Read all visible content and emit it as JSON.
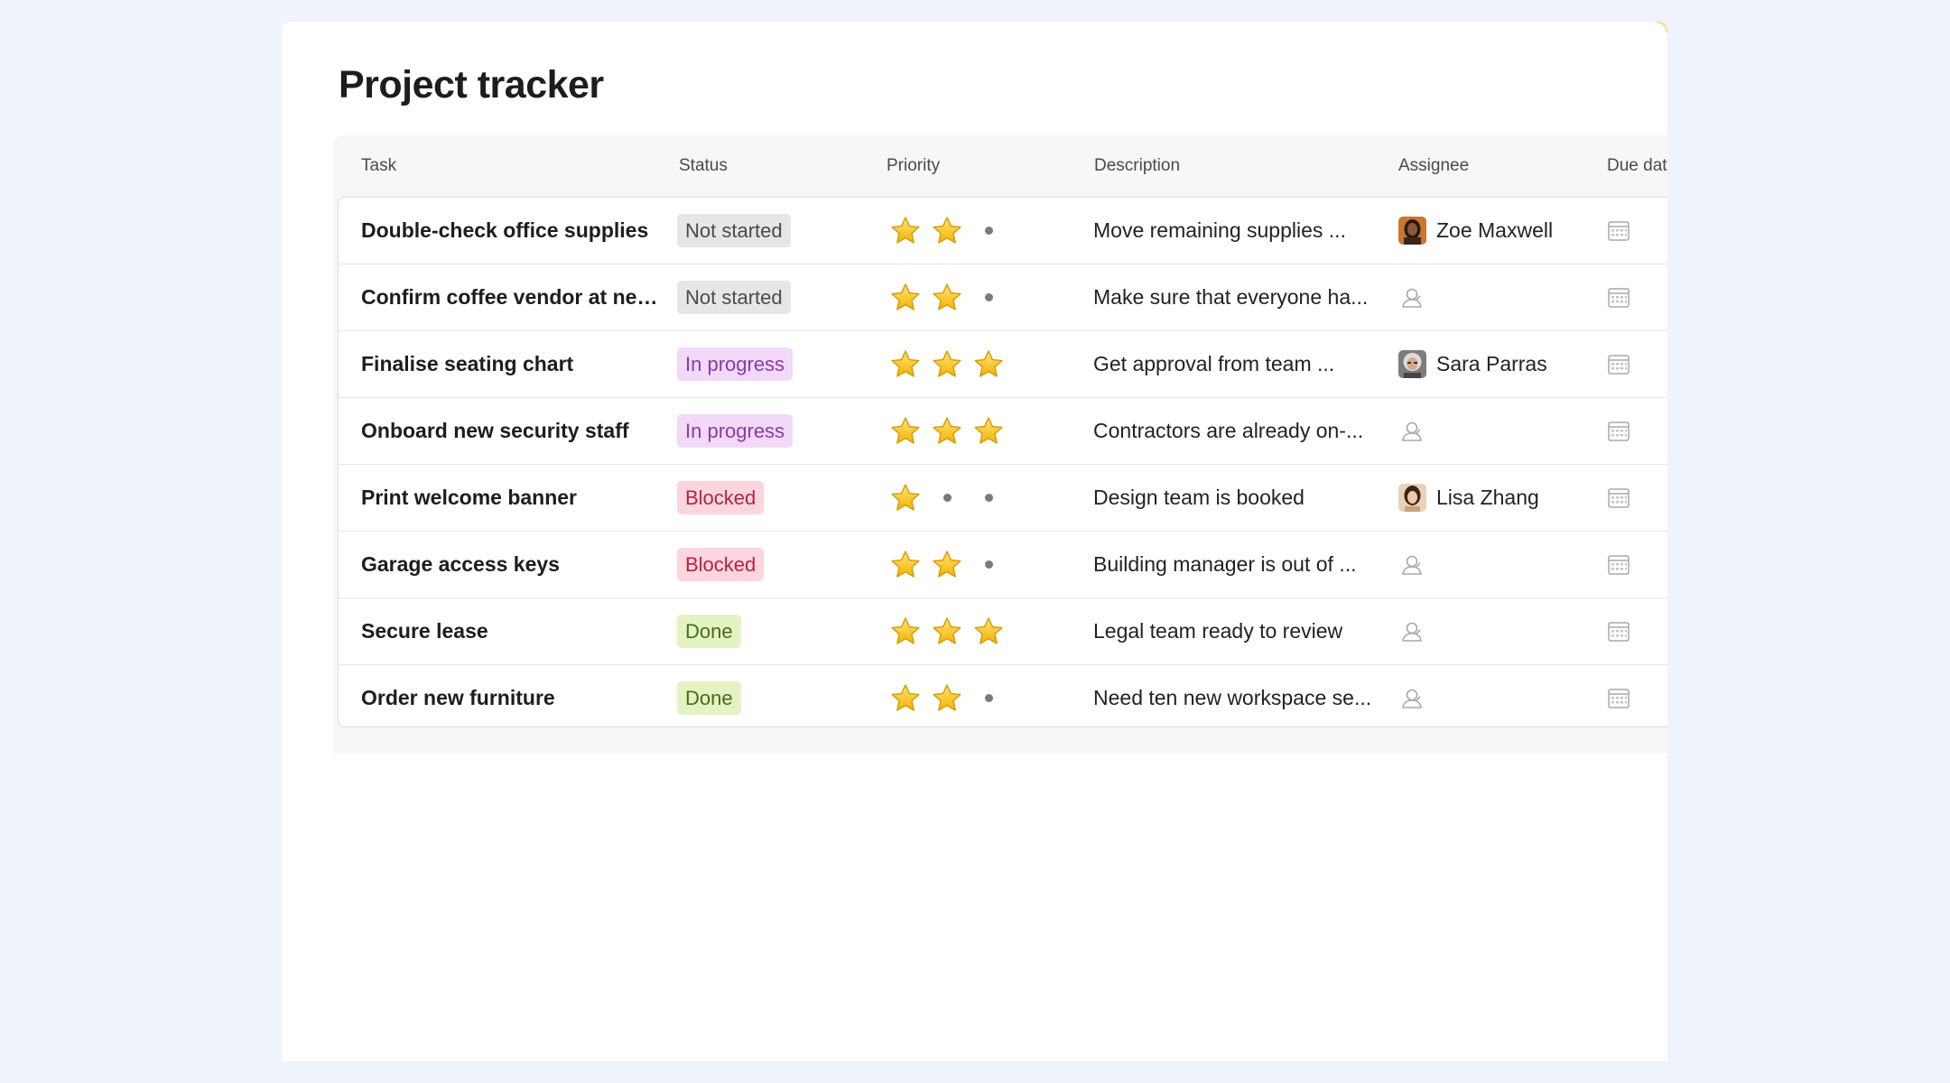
{
  "page": {
    "title": "Project tracker"
  },
  "columns": {
    "task": "Task",
    "status": "Status",
    "priority": "Priority",
    "description": "Description",
    "assignee": "Assignee",
    "due": "Due dat"
  },
  "status_styles": {
    "Not started": {
      "bg": "#e6e6e6",
      "fg": "#4a4a4a"
    },
    "In progress": {
      "bg": "#f1d9f7",
      "fg": "#8b3aa8"
    },
    "Blocked": {
      "bg": "#fbd6de",
      "fg": "#b8223f"
    },
    "Done": {
      "bg": "#e3f3c4",
      "fg": "#4b6b16"
    }
  },
  "rows": [
    {
      "task": "Double-check office supplies",
      "status": "Not started",
      "priority": 2,
      "description": "Move remaining supplies ...",
      "assignee": "Zoe Maxwell",
      "avatar": "avatar-zoe"
    },
    {
      "task": "Confirm coffee vendor at new...",
      "status": "Not started",
      "priority": 2,
      "description": "Make sure that everyone ha...",
      "assignee": "",
      "avatar": ""
    },
    {
      "task": "Finalise seating chart",
      "status": "In progress",
      "priority": 3,
      "description": "Get approval from team ...",
      "assignee": "Sara Parras",
      "avatar": "avatar-sara"
    },
    {
      "task": "Onboard new security staff",
      "status": "In progress",
      "priority": 3,
      "description": "Contractors are already on-...",
      "assignee": "",
      "avatar": ""
    },
    {
      "task": "Print welcome banner",
      "status": "Blocked",
      "priority": 1,
      "description": "Design team is booked",
      "assignee": "Lisa Zhang",
      "avatar": "avatar-lisa"
    },
    {
      "task": "Garage access keys",
      "status": "Blocked",
      "priority": 2,
      "description": "Building manager is out of ...",
      "assignee": "",
      "avatar": ""
    },
    {
      "task": "Secure lease",
      "status": "Done",
      "priority": 3,
      "description": "Legal team ready to review",
      "assignee": "",
      "avatar": ""
    },
    {
      "task": "Order new furniture",
      "status": "Done",
      "priority": 2,
      "description": "Need ten new workspace se...",
      "assignee": "",
      "avatar": ""
    }
  ],
  "priority_max": 3,
  "icons": {
    "priority_on": "star-icon",
    "priority_off": "dot-icon",
    "no_assignee": "person-icon",
    "due_date": "calendar-icon"
  }
}
